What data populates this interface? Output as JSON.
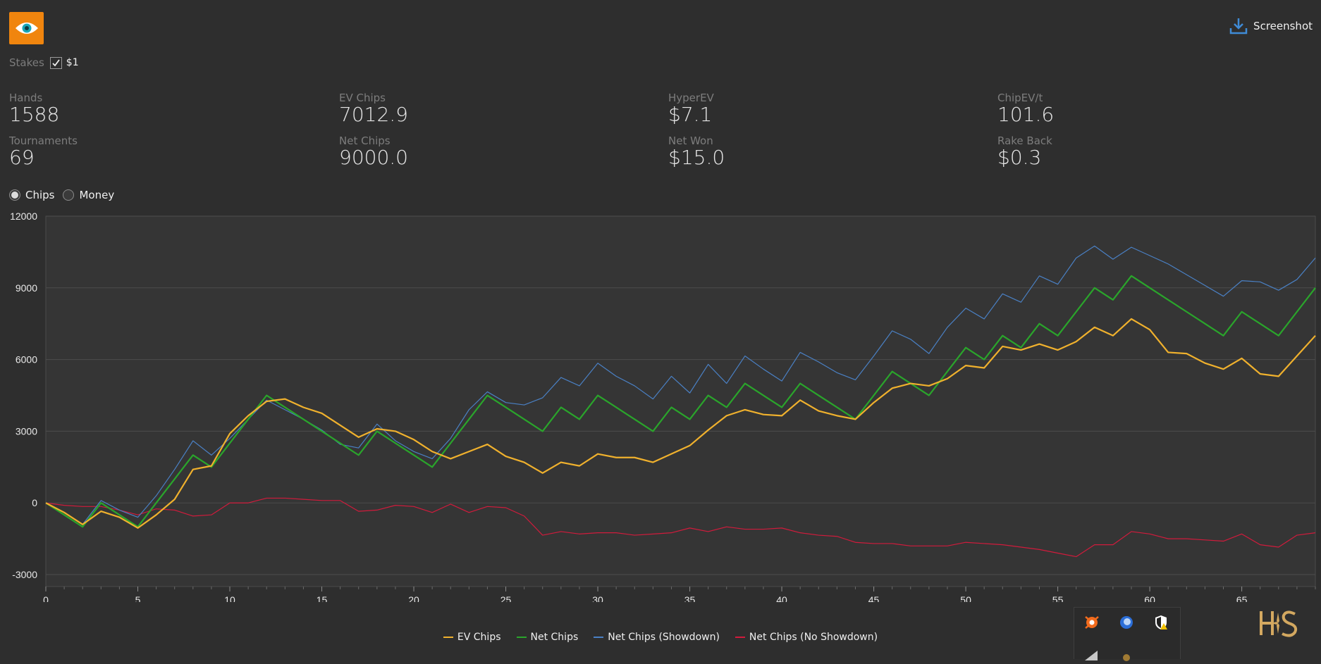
{
  "toolbar": {
    "screenshot_label": "Screenshot"
  },
  "icons": {
    "app": "eye-icon",
    "screenshot": "download-icon"
  },
  "stakes": {
    "label": "Stakes",
    "option_label": "$1",
    "checked": true
  },
  "stats": [
    {
      "label": "Hands",
      "value": "1588"
    },
    {
      "label": "Tournaments",
      "value": "69"
    },
    {
      "label": "EV Chips",
      "value": "7012.9"
    },
    {
      "label": "Net Chips",
      "value": "9000.0"
    },
    {
      "label": "HyperEV",
      "value": "$7.1"
    },
    {
      "label": "Net Won",
      "value": "$15.0"
    },
    {
      "label": "ChipEV/t",
      "value": "101.6"
    },
    {
      "label": "Rake Back",
      "value": "$0.3"
    }
  ],
  "view_toggle": {
    "chips_label": "Chips",
    "money_label": "Money",
    "selected": "Chips"
  },
  "chart_data": {
    "type": "line",
    "xlim": [
      0,
      69
    ],
    "ylim": [
      -3500,
      12000
    ],
    "x_ticks": [
      0,
      5,
      10,
      15,
      20,
      25,
      30,
      35,
      40,
      45,
      50,
      55,
      60,
      65
    ],
    "y_ticks": [
      -3000,
      0,
      3000,
      6000,
      9000,
      12000
    ],
    "grid": true,
    "legend_position": "bottom",
    "series": [
      {
        "name": "EV Chips",
        "color": "#f0b12d",
        "values": [
          0,
          -400,
          -900,
          -350,
          -600,
          -1050,
          -500,
          150,
          1400,
          1550,
          2900,
          3650,
          4250,
          4350,
          4000,
          3750,
          3250,
          2750,
          3100,
          3000,
          2650,
          2150,
          1850,
          2150,
          2450,
          1950,
          1700,
          1250,
          1700,
          1550,
          2050,
          1900,
          1900,
          1700,
          2050,
          2400,
          3050,
          3650,
          3900,
          3700,
          3650,
          4300,
          3850,
          3650,
          3500,
          4200,
          4800,
          5000,
          4900,
          5200,
          5750,
          5650,
          6550,
          6400,
          6650,
          6400,
          6750,
          7350,
          7000,
          7700,
          7250,
          6300,
          6250,
          5850,
          5600,
          6050,
          5400,
          5300,
          6150,
          7000
        ]
      },
      {
        "name": "Net Chips",
        "color": "#2aa52b",
        "values": [
          0,
          -500,
          -1000,
          0,
          -500,
          -1000,
          0,
          1000,
          2000,
          1500,
          2500,
          3500,
          4500,
          4000,
          3500,
          3000,
          2500,
          2000,
          3000,
          2500,
          2000,
          1500,
          2500,
          3500,
          4500,
          4000,
          3500,
          3000,
          4000,
          3500,
          4500,
          4000,
          3500,
          3000,
          4000,
          3500,
          4500,
          4000,
          5000,
          4500,
          4000,
          5000,
          4500,
          4000,
          3500,
          4500,
          5500,
          5000,
          4500,
          5500,
          6500,
          6000,
          7000,
          6500,
          7500,
          7000,
          8000,
          9000,
          8500,
          9500,
          9000,
          8500,
          8000,
          7500,
          7000,
          8000,
          7500,
          7000,
          8000,
          9000
        ]
      },
      {
        "name": "Net Chips (Showdown)",
        "color": "#4a80c4",
        "values": [
          0,
          -400,
          -900,
          100,
          -300,
          -600,
          300,
          1400,
          2600,
          2000,
          2700,
          3500,
          4300,
          3900,
          3500,
          3050,
          2450,
          2300,
          3300,
          2600,
          2150,
          1850,
          2700,
          3900,
          4650,
          4200,
          4100,
          4400,
          5250,
          4900,
          5850,
          5300,
          4900,
          4350,
          5300,
          4600,
          5800,
          5000,
          6150,
          5600,
          5100,
          6300,
          5900,
          5450,
          5150,
          6150,
          7200,
          6850,
          6250,
          7350,
          8150,
          7700,
          8750,
          8400,
          9500,
          9150,
          10250,
          10750,
          10200,
          10700,
          10350,
          10000,
          9550,
          9100,
          8650,
          9300,
          9250,
          8900,
          9350,
          10250
        ]
      },
      {
        "name": "Net Chips (No Showdown)",
        "color": "#d11b3c",
        "values": [
          0,
          -100,
          -150,
          -150,
          -300,
          -500,
          -250,
          -300,
          -550,
          -500,
          0,
          0,
          200,
          200,
          150,
          100,
          100,
          -350,
          -300,
          -100,
          -150,
          -400,
          -50,
          -400,
          -150,
          -200,
          -550,
          -1350,
          -1200,
          -1300,
          -1250,
          -1250,
          -1350,
          -1300,
          -1250,
          -1050,
          -1200,
          -1000,
          -1100,
          -1100,
          -1050,
          -1250,
          -1350,
          -1400,
          -1650,
          -1700,
          -1700,
          -1800,
          -1800,
          -1800,
          -1650,
          -1700,
          -1750,
          -1850,
          -1950,
          -2100,
          -2250,
          -1750,
          -1750,
          -1200,
          -1300,
          -1500,
          -1500,
          -1550,
          -1600,
          -1300,
          -1750,
          -1850,
          -1350,
          -1250
        ]
      }
    ]
  }
}
